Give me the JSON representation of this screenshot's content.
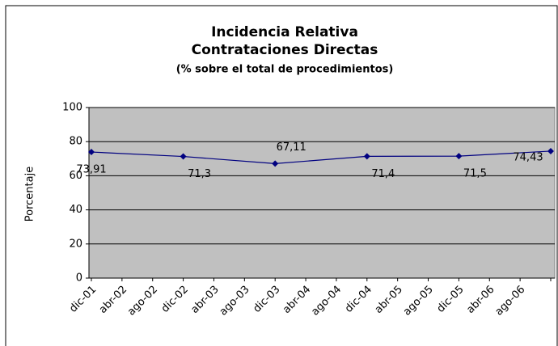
{
  "chart_data": {
    "type": "line",
    "title": "Incidencia Relativa",
    "subtitle": "Contrataciones Directas",
    "note": "(% sobre el total de procedimientos)",
    "y_label": "Porcentaje",
    "categories": [
      "dic-01",
      "abr-02",
      "ago-02",
      "dic-02",
      "abr-03",
      "ago-03",
      "dic-03",
      "abr-04",
      "ago-04",
      "dic-04",
      "abr-05",
      "ago-05",
      "dic-05",
      "abr-06",
      "ago-06",
      null
    ],
    "series": [
      {
        "name": "Porcentaje",
        "color": "#000080",
        "values": [
          73.91,
          null,
          null,
          71.3,
          null,
          null,
          67.11,
          null,
          null,
          71.4,
          null,
          null,
          71.5,
          null,
          null,
          74.43
        ],
        "value_labels": [
          "73,91",
          null,
          null,
          "71,3",
          null,
          null,
          "67,11",
          null,
          null,
          "71,4",
          null,
          null,
          "71,5",
          null,
          null,
          "74,43"
        ]
      }
    ],
    "ylim": [
      0,
      100
    ],
    "yticks": [
      0,
      20,
      40,
      60,
      80,
      100
    ],
    "grid": true
  }
}
